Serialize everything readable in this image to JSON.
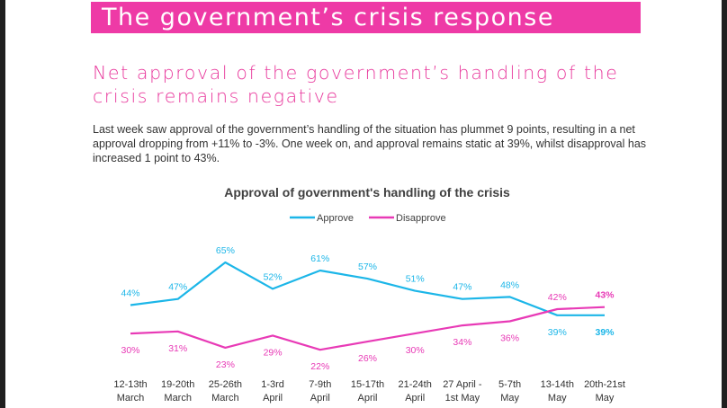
{
  "banner": {
    "title": "The government’s crisis response"
  },
  "subtitle": "Net approval of the government’s handling of the crisis remains negative",
  "body": "Last week saw approval of the government’s handling of the situation has plummet 9 points, resulting in a net approval dropping from +11% to -3%. One week on, and approval remains static at 39%, whilst disapproval has increased 1 point to 43%.",
  "colors": {
    "approve": "#1cb6e8",
    "disapprove": "#e83ab6",
    "banner": "#ee3aa6",
    "text": "#333333"
  },
  "chart_data": {
    "type": "line",
    "title": "Approval of government's handling of the crisis",
    "categories": [
      [
        "12-13th",
        "March"
      ],
      [
        "19-20th",
        "March"
      ],
      [
        "25-26th",
        "March"
      ],
      [
        "1-3rd",
        "April"
      ],
      [
        "7-9th",
        "April"
      ],
      [
        "15-17th",
        "April"
      ],
      [
        "21-24th",
        "April"
      ],
      [
        "27 April -",
        "1st May"
      ],
      [
        "5-7th",
        "May"
      ],
      [
        "13-14th",
        "May"
      ],
      [
        "20th-21st",
        "May"
      ]
    ],
    "series": [
      {
        "name": "Approve",
        "color": "#1cb6e8",
        "values": [
          44,
          47,
          65,
          52,
          61,
          57,
          51,
          47,
          48,
          39,
          39
        ]
      },
      {
        "name": "Disapprove",
        "color": "#e83ab6",
        "values": [
          30,
          31,
          23,
          29,
          22,
          26,
          30,
          34,
          36,
          42,
          43
        ]
      }
    ],
    "ylim": [
      15,
      75
    ],
    "grid": false,
    "legend": "top"
  }
}
